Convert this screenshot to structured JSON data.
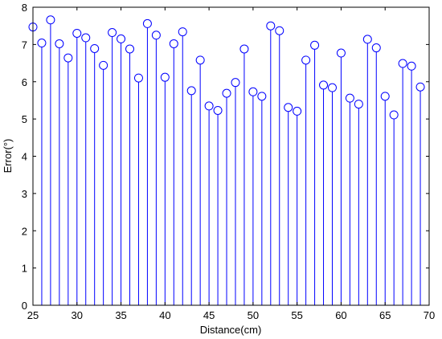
{
  "chart_data": {
    "type": "stem",
    "title": "",
    "xlabel": "Distance(cm)",
    "ylabel": "Error(°)",
    "xlim": [
      25,
      70
    ],
    "ylim": [
      0,
      8
    ],
    "xticks": [
      "25",
      "30",
      "35",
      "40",
      "45",
      "50",
      "55",
      "60",
      "65",
      "70"
    ],
    "yticks": [
      "0",
      "1",
      "2",
      "3",
      "4",
      "5",
      "6",
      "7",
      "8"
    ],
    "grid": false,
    "marker": "circle",
    "color": "#0000ff",
    "x": [
      25,
      26,
      27,
      28,
      29,
      30,
      31,
      32,
      33,
      34,
      35,
      36,
      37,
      38,
      39,
      40,
      41,
      42,
      43,
      44,
      45,
      46,
      47,
      48,
      49,
      50,
      51,
      52,
      53,
      54,
      55,
      56,
      57,
      58,
      59,
      60,
      61,
      62,
      63,
      64,
      65,
      66,
      67,
      68,
      69
    ],
    "values": [
      7.47,
      7.04,
      7.66,
      7.02,
      6.64,
      7.3,
      7.18,
      6.89,
      6.44,
      7.32,
      7.15,
      6.88,
      6.1,
      7.56,
      7.25,
      6.12,
      7.02,
      7.34,
      5.76,
      6.58,
      5.35,
      5.23,
      5.69,
      5.98,
      6.88,
      5.73,
      5.61,
      7.5,
      7.37,
      5.31,
      5.21,
      6.58,
      6.98,
      5.91,
      5.84,
      6.77,
      5.56,
      5.4,
      7.14,
      6.91,
      5.61,
      5.11,
      6.49,
      6.42,
      5.86
    ]
  }
}
